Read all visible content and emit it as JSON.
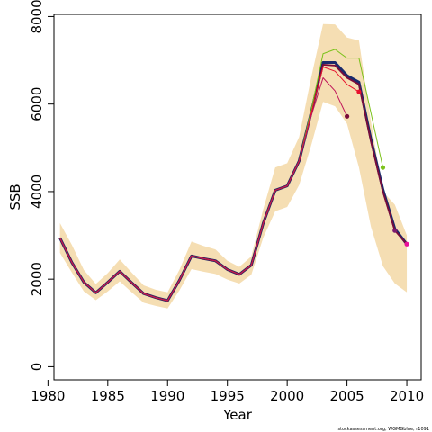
{
  "chart_data": {
    "type": "line",
    "title": "",
    "xlabel": "Year",
    "ylabel": "SSB",
    "xlim": [
      1980.5,
      2011.2
    ],
    "ylim": [
      -300,
      8050
    ],
    "xticks": [
      1980,
      1985,
      1990,
      1995,
      2000,
      2005,
      2010
    ],
    "yticks": [
      0,
      2000,
      4000,
      6000,
      8000
    ],
    "grid": false,
    "legend": "none",
    "credit": "stockassessment.org, WGMGblue, r1091",
    "confidence_band": {
      "color": "#f5deb3",
      "x": [
        1981,
        1982,
        1983,
        1984,
        1985,
        1986,
        1987,
        1988,
        1989,
        1990,
        1991,
        1992,
        1993,
        1994,
        1995,
        1996,
        1997,
        1998,
        1999,
        2000,
        2001,
        2002,
        2003,
        2004,
        2005,
        2006,
        2007,
        2008,
        2009,
        2010
      ],
      "lower": [
        2600,
        2150,
        1720,
        1520,
        1720,
        1950,
        1700,
        1460,
        1390,
        1330,
        1750,
        2230,
        2170,
        2120,
        1990,
        1900,
        2100,
        2950,
        3550,
        3650,
        4150,
        5050,
        6050,
        5950,
        5550,
        4550,
        3200,
        2300,
        1900,
        1700
      ],
      "upper": [
        3280,
        2780,
        2210,
        1890,
        2140,
        2450,
        2150,
        1860,
        1760,
        1700,
        2220,
        2860,
        2760,
        2680,
        2420,
        2280,
        2520,
        3600,
        4550,
        4650,
        5250,
        6600,
        7830,
        7820,
        7520,
        7450,
        5600,
        4000,
        3700,
        3000
      ]
    },
    "series": [
      {
        "color": "#1a2a6c",
        "width": 3,
        "x": [
          1981,
          1982,
          1983,
          1984,
          1985,
          1986,
          1987,
          1988,
          1989,
          1990,
          1991,
          1992,
          1993,
          1994,
          1995,
          1996,
          1997,
          1998,
          1999,
          2000,
          2001,
          2002,
          2003,
          2004,
          2005,
          2006,
          2007,
          2008,
          2009,
          2010
        ],
        "y": [
          2940,
          2380,
          1930,
          1690,
          1930,
          2180,
          1920,
          1670,
          1580,
          1510,
          1980,
          2530,
          2470,
          2420,
          2220,
          2110,
          2320,
          3280,
          4030,
          4130,
          4700,
          5800,
          6950,
          6950,
          6650,
          6500,
          5200,
          4050,
          3150,
          2800
        ]
      },
      {
        "color": "#7a0b3a",
        "width": 1.8,
        "x": [
          1981,
          1982,
          1983,
          1984,
          1985,
          1986,
          1987,
          1988,
          1989,
          1990,
          1991,
          1992,
          1993,
          1994,
          1995,
          1996,
          1997,
          1998,
          1999,
          2000,
          2001,
          2002,
          2003,
          2004,
          2005,
          2006,
          2007,
          2008,
          2009,
          2010
        ],
        "y": [
          2940,
          2380,
          1930,
          1690,
          1930,
          2180,
          1920,
          1670,
          1580,
          1510,
          1980,
          2530,
          2470,
          2420,
          2220,
          2110,
          2320,
          3280,
          4030,
          4130,
          4700,
          5800,
          6900,
          6880,
          6600,
          6450,
          5150,
          4000,
          3110,
          2800
        ]
      },
      {
        "color": "#7cc21c",
        "width": 1,
        "x": [
          1981,
          1982,
          1983,
          1984,
          1985,
          1986,
          1987,
          1988,
          1989,
          1990,
          1991,
          1992,
          1993,
          1994,
          1995,
          1996,
          1997,
          1998,
          1999,
          2000,
          2001,
          2002,
          2003,
          2004,
          2005,
          2006,
          2007,
          2008
        ],
        "y": [
          2940,
          2380,
          1930,
          1690,
          1930,
          2180,
          1920,
          1670,
          1580,
          1510,
          1980,
          2530,
          2470,
          2420,
          2220,
          2110,
          2320,
          3280,
          4030,
          4130,
          4700,
          5850,
          7150,
          7250,
          7050,
          7050,
          5800,
          4550
        ]
      },
      {
        "color": "#e8112d",
        "width": 1,
        "x": [
          1981,
          1982,
          1983,
          1984,
          1985,
          1986,
          1987,
          1988,
          1989,
          1990,
          1991,
          1992,
          1993,
          1994,
          1995,
          1996,
          1997,
          1998,
          1999,
          2000,
          2001,
          2002,
          2003,
          2004,
          2005,
          2006
        ],
        "y": [
          2940,
          2380,
          1930,
          1690,
          1930,
          2180,
          1920,
          1670,
          1580,
          1510,
          1980,
          2530,
          2470,
          2420,
          2220,
          2110,
          2320,
          3280,
          4030,
          4130,
          4700,
          5780,
          6850,
          6750,
          6450,
          6280
        ]
      },
      {
        "color": "#c0165a",
        "width": 1,
        "x": [
          1981,
          1982,
          1983,
          1984,
          1985,
          1986,
          1987,
          1988,
          1989,
          1990,
          1991,
          1992,
          1993,
          1994,
          1995,
          1996,
          1997,
          1998,
          1999,
          2000,
          2001,
          2002,
          2003,
          2004,
          2005
        ],
        "y": [
          2940,
          2380,
          1930,
          1690,
          1930,
          2180,
          1920,
          1670,
          1580,
          1510,
          1980,
          2530,
          2470,
          2420,
          2220,
          2110,
          2320,
          3280,
          4030,
          4130,
          4700,
          5720,
          6600,
          6300,
          5720
        ]
      }
    ],
    "endpoints": [
      {
        "x": 2005,
        "y": 5720,
        "color": "#7a0b3a"
      },
      {
        "x": 2006,
        "y": 6280,
        "color": "#e8112d"
      },
      {
        "x": 2008,
        "y": 4550,
        "color": "#7cc21c"
      },
      {
        "x": 2009,
        "y": 3110,
        "color": "#7a1a6e"
      },
      {
        "x": 2010,
        "y": 2800,
        "color": "#e8119a"
      }
    ]
  }
}
